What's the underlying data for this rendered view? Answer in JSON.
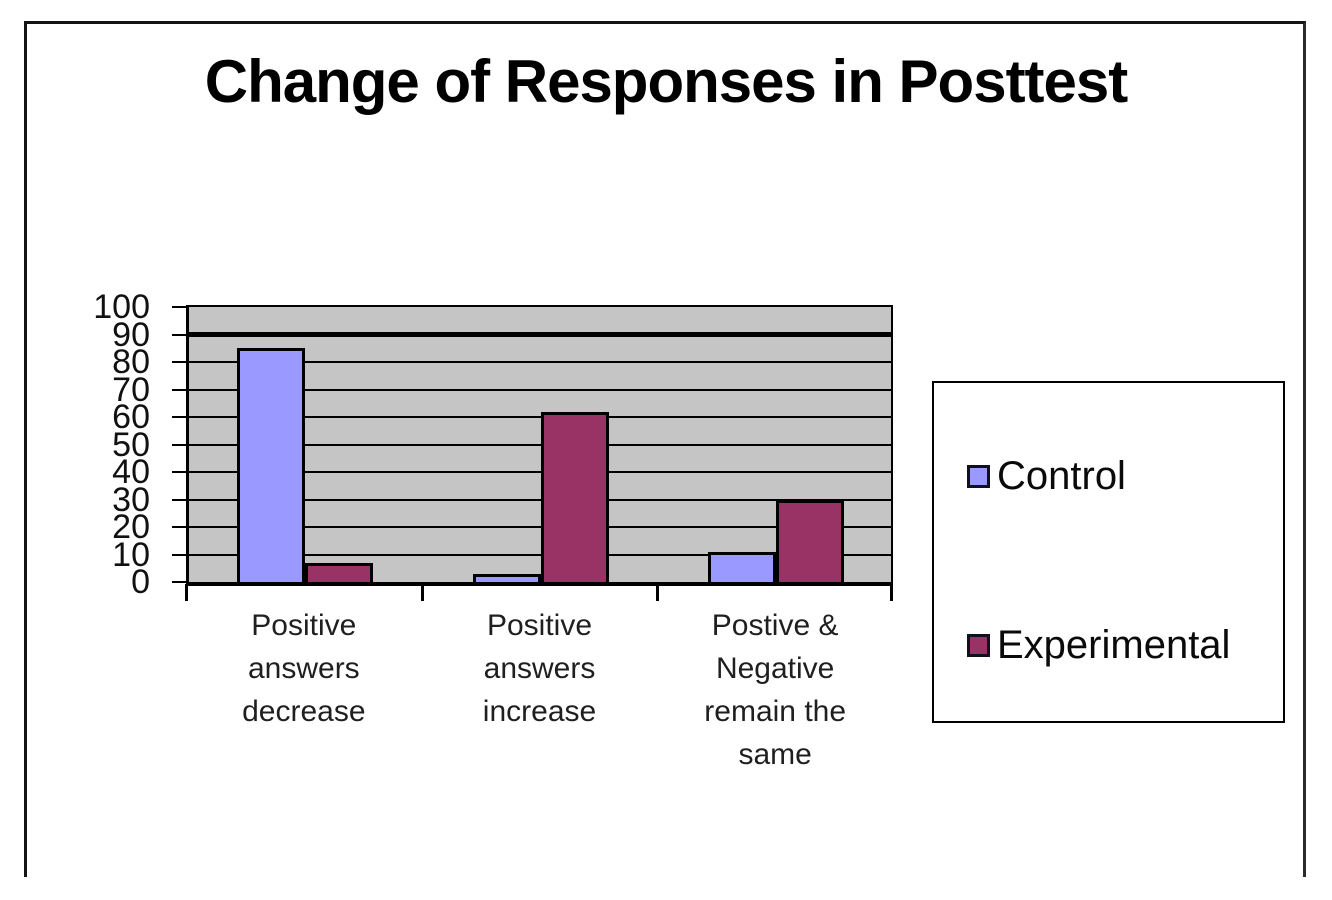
{
  "frame": {
    "border_color": "#141414",
    "background": "#ffffff"
  },
  "chart_data": {
    "type": "bar",
    "title": "Change of Responses in Posttest",
    "categories": [
      "Positive answers decrease",
      "Positive answers increase",
      "Postive & Negative remain the same"
    ],
    "category_label_lines": [
      [
        "Positive",
        "answers",
        "decrease"
      ],
      [
        "Positive",
        "answers",
        "increase"
      ],
      [
        "Postive &",
        "Negative",
        "remain the",
        "same"
      ]
    ],
    "series": [
      {
        "name": "Control",
        "color": "#9999ff",
        "values": [
          85,
          3,
          11
        ]
      },
      {
        "name": "Experimental",
        "color": "#993366",
        "values": [
          7,
          62,
          30
        ]
      }
    ],
    "xlabel": "",
    "ylabel": "",
    "ylim": [
      0,
      100
    ],
    "ytick_step": 10,
    "ytick_labels": [
      "0",
      "10",
      "20",
      "30",
      "40",
      "50",
      "60",
      "70",
      "80",
      "90",
      "100"
    ],
    "grid": "horizontal-major",
    "emphasized_gridline_value": 90,
    "plot_background": "#c5c5c5",
    "gridline_color": "#000000",
    "axis_color": "#000000",
    "bar_border_color": "#000000",
    "legend_position": "right"
  }
}
